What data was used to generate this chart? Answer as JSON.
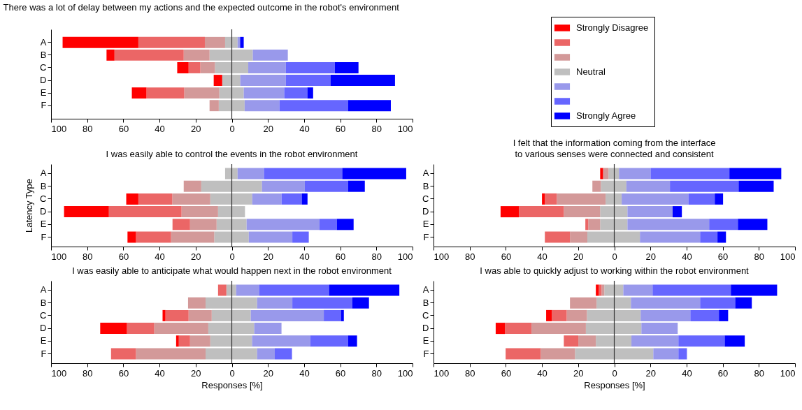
{
  "chart_data": [
    {
      "type": "bar",
      "orientation": "horizontal",
      "stacked": true,
      "title": "There was a lot of delay between my actions and the expected outcome in the robot's environment",
      "categories": [
        "A",
        "B",
        "C",
        "D",
        "E",
        "F"
      ],
      "xlim": [
        -100,
        100
      ],
      "xticks": [
        {
          "value": -100,
          "label": "100"
        },
        {
          "value": -80,
          "label": "80"
        },
        {
          "value": -60,
          "label": "60"
        },
        {
          "value": -40,
          "label": "40"
        },
        {
          "value": -20,
          "label": "20"
        },
        0,
        20,
        40,
        60,
        80,
        100
      ],
      "legend": "top right",
      "ref_lines": [
        {
          "axis": "x",
          "value": 0,
          "color": "#333333"
        }
      ],
      "series": [
        {
          "color": "#bfbfbf",
          "values": [
            -3.7,
            -12.3,
            -9.3,
            -5.3,
            -6.9,
            -7.2
          ]
        },
        {
          "name": "Neutral",
          "color": "#bfbfbf",
          "values": [
            3.2,
            11.6,
            9.1,
            4.7,
            6.6,
            7.1
          ]
        },
        {
          "color": "#d39999",
          "values": [
            -11.2,
            -14.3,
            -8.1,
            0,
            -19.4,
            -5.1
          ]
        },
        {
          "color": "#9999eb",
          "values": [
            1.4,
            19.4,
            20.8,
            25.2,
            22.4,
            19.3
          ]
        },
        {
          "color": "#eb6666",
          "values": [
            -36.8,
            -38.3,
            -6.5,
            0,
            -20.9,
            0
          ]
        },
        {
          "color": "#6666ff",
          "values": [
            0,
            0,
            27.1,
            24.7,
            12.8,
            37.9
          ]
        },
        {
          "name": "Strongly Disagree",
          "color": "#ff0000",
          "values": [
            -41.9,
            -4.4,
            -6.3,
            -4.7,
            -8.1,
            0
          ]
        },
        {
          "name": "Strongly Agree",
          "color": "#0000ff",
          "values": [
            2.0,
            0,
            13.1,
            35.7,
            3.2,
            23.7
          ]
        }
      ]
    },
    {
      "type": "bar",
      "orientation": "horizontal",
      "stacked": true,
      "title": "I was easily able to control the events in the robot environment",
      "ylabel": "Latency Type",
      "categories": [
        "A",
        "B",
        "C",
        "D",
        "E",
        "F"
      ],
      "xlim": [
        -100,
        100
      ],
      "xticks": [
        {
          "value": -100,
          "label": "100"
        },
        {
          "value": -80,
          "label": "80"
        },
        {
          "value": -60,
          "label": "60"
        },
        {
          "value": -40,
          "label": "40"
        },
        {
          "value": -20,
          "label": "20"
        },
        0,
        20,
        40,
        60,
        80,
        100
      ],
      "ref_lines": [
        {
          "axis": "x",
          "value": 0,
          "color": "#333333"
        }
      ],
      "series": [
        {
          "color": "#bfbfbf",
          "values": [
            -3.7,
            -16.9,
            -11.9,
            -7.6,
            -8.4,
            -9.7
          ]
        },
        {
          "color": "#bfbfbf",
          "values": [
            3.2,
            16.7,
            11.3,
            7.3,
            8.2,
            9.4
          ]
        },
        {
          "color": "#d39999",
          "values": [
            0,
            -9.7,
            -21.0,
            -20.2,
            -14.7,
            -23.9
          ]
        },
        {
          "color": "#9999eb",
          "values": [
            14.6,
            23.7,
            16.2,
            0,
            40.3,
            24.1
          ]
        },
        {
          "color": "#eb6666",
          "values": [
            0,
            0,
            -18.8,
            -40.2,
            -9.7,
            -19.4
          ]
        },
        {
          "color": "#6666ff",
          "values": [
            43.3,
            23.9,
            11.2,
            0,
            9.6,
            9.1
          ]
        },
        {
          "color": "#ff0000",
          "values": [
            0,
            0,
            -6.7,
            -24.8,
            0,
            -4.7
          ]
        },
        {
          "color": "#0000ff",
          "values": [
            35.4,
            9.3,
            3.2,
            0,
            9.3,
            0
          ]
        }
      ]
    },
    {
      "type": "bar",
      "orientation": "horizontal",
      "stacked": true,
      "title": "I felt that the information coming from the interface\nto various senses were connected and consistent",
      "categories": [
        "A",
        "B",
        "C",
        "D",
        "E",
        "F"
      ],
      "xlim": [
        -100,
        100
      ],
      "xticks": [
        {
          "value": -100,
          "label": "100"
        },
        {
          "value": -80,
          "label": "80"
        },
        {
          "value": -60,
          "label": "60"
        },
        {
          "value": -40,
          "label": "40"
        },
        {
          "value": -20,
          "label": "20"
        },
        0,
        20,
        40,
        60,
        80,
        100
      ],
      "ref_lines": [
        {
          "axis": "x",
          "value": 0,
          "color": "#333333"
        }
      ],
      "series": [
        {
          "color": "#bfbfbf",
          "values": [
            -3.2,
            -7.4,
            -4.8,
            -7.8,
            -7.8,
            -14.9
          ]
        },
        {
          "color": "#bfbfbf",
          "values": [
            2.6,
            6.7,
            4.1,
            7.3,
            7.3,
            14.2
          ]
        },
        {
          "color": "#d39999",
          "values": [
            -3.0,
            -4.7,
            -27.0,
            -20.1,
            -6.6,
            -9.6
          ]
        },
        {
          "color": "#9999eb",
          "values": [
            17.5,
            24.1,
            36.9,
            25.0,
            45.2,
            33.3
          ]
        },
        {
          "color": "#eb6666",
          "values": [
            0,
            0,
            -6.6,
            -24.8,
            -1.6,
            -13.9
          ]
        },
        {
          "color": "#6666ff",
          "values": [
            43.6,
            38.0,
            14.6,
            0,
            15.9,
            9.6
          ]
        },
        {
          "color": "#ff0000",
          "values": [
            -1.6,
            0,
            -1.6,
            -10.2,
            0,
            0
          ]
        },
        {
          "color": "#0000ff",
          "values": [
            28.7,
            19.4,
            4.6,
            5.1,
            16.3,
            4.7
          ]
        }
      ]
    },
    {
      "type": "bar",
      "orientation": "horizontal",
      "stacked": true,
      "title": "I was easily able to anticipate what would happen next in the robot environment",
      "xlabel": "Responses [%]",
      "categories": [
        "A",
        "B",
        "C",
        "D",
        "E",
        "F"
      ],
      "xlim": [
        -100,
        100
      ],
      "xticks": [
        {
          "value": -100,
          "label": "100"
        },
        {
          "value": -80,
          "label": "80"
        },
        {
          "value": -60,
          "label": "60"
        },
        {
          "value": -40,
          "label": "40"
        },
        {
          "value": -20,
          "label": "20"
        },
        0,
        20,
        40,
        60,
        80,
        100
      ],
      "ref_lines": [
        {
          "axis": "x",
          "value": 0,
          "color": "#333333"
        }
      ],
      "series": [
        {
          "color": "#bfbfbf",
          "values": [
            -3.0,
            -14.5,
            -11.1,
            -13.0,
            -11.9,
            -14.5
          ]
        },
        {
          "color": "#bfbfbf",
          "values": [
            2.4,
            14.0,
            10.5,
            12.4,
            11.2,
            14.0
          ]
        },
        {
          "color": "#d39999",
          "values": [
            0,
            -9.7,
            -12.8,
            -29.9,
            -11.2,
            -38.5
          ]
        },
        {
          "color": "#9999eb",
          "values": [
            12.7,
            19.5,
            40.4,
            15.1,
            32.2,
            9.8
          ]
        },
        {
          "color": "#eb6666",
          "values": [
            -4.6,
            0,
            -12.8,
            -15.1,
            -6.2,
            -13.8
          ]
        },
        {
          "color": "#6666ff",
          "values": [
            38.7,
            33.2,
            9.5,
            0,
            20.9,
            9.5
          ]
        },
        {
          "color": "#ff0000",
          "values": [
            0,
            0,
            -1.6,
            -14.8,
            -1.5,
            0
          ]
        },
        {
          "color": "#0000ff",
          "values": [
            38.9,
            9.2,
            1.6,
            0,
            5.0,
            0
          ]
        }
      ]
    },
    {
      "type": "bar",
      "orientation": "horizontal",
      "stacked": true,
      "title": "I was able to quickly adjust to working within the robot environment",
      "xlabel": "Responses [%]",
      "categories": [
        "A",
        "B",
        "C",
        "D",
        "E",
        "F"
      ],
      "xlim": [
        -100,
        100
      ],
      "xticks": [
        {
          "value": -100,
          "label": "100"
        },
        {
          "value": -80,
          "label": "80"
        },
        {
          "value": -60,
          "label": "60"
        },
        {
          "value": -40,
          "label": "40"
        },
        {
          "value": -20,
          "label": "20"
        },
        0,
        20,
        40,
        60,
        80,
        100
      ],
      "ref_lines": [
        {
          "axis": "x",
          "value": 0,
          "color": "#333333"
        }
      ],
      "series": [
        {
          "color": "#bfbfbf",
          "values": [
            -5.5,
            -9.8,
            -15.1,
            -15.7,
            -10.2,
            -21.7
          ]
        },
        {
          "color": "#bfbfbf",
          "values": [
            5.0,
            9.2,
            14.6,
            15.0,
            9.5,
            21.6
          ]
        },
        {
          "color": "#d39999",
          "values": [
            -1.5,
            -14.7,
            -11.2,
            -30.1,
            -9.7,
            -19.0
          ]
        },
        {
          "color": "#9999eb",
          "values": [
            16.2,
            38.3,
            27.5,
            20.1,
            26.0,
            13.9
          ]
        },
        {
          "color": "#eb6666",
          "values": [
            -1.5,
            0,
            -8.2,
            -14.7,
            -8.0,
            -19.4
          ]
        },
        {
          "color": "#6666ff",
          "values": [
            43.3,
            19.4,
            15.8,
            0,
            25.6,
            4.7
          ]
        },
        {
          "color": "#ff0000",
          "values": [
            -1.7,
            0,
            -3.2,
            -5.1,
            0,
            0
          ]
        },
        {
          "color": "#0000ff",
          "values": [
            25.6,
            9.2,
            5.1,
            0,
            11.1,
            0
          ]
        }
      ]
    }
  ]
}
